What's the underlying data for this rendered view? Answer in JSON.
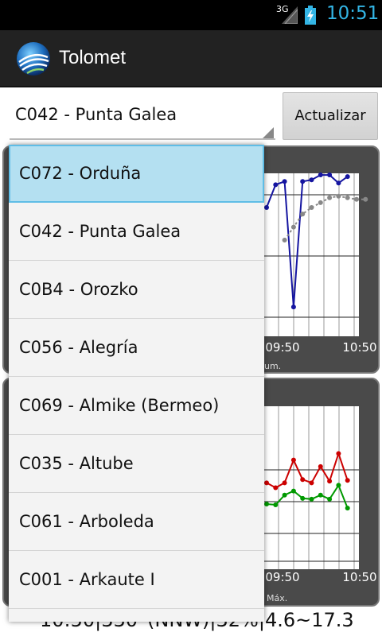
{
  "status_bar": {
    "network": "3G",
    "time": "10:51",
    "time_color": "#33b5e5",
    "icons": [
      "signal-icon",
      "battery-charging-icon"
    ]
  },
  "action_bar": {
    "title": "Tolomet",
    "logo_icon": "tolomet-logo-icon"
  },
  "toolbar": {
    "selected_station": "C042 - Punta Galea",
    "refresh_label": "Actualizar"
  },
  "dropdown": {
    "items": [
      "C072 - Orduña",
      "C042 - Punta Galea",
      "C0B4 - Orozko",
      "C056 - Alegría",
      "C069 - Almike (Bermeo)",
      "C035 - Altube",
      "C061 - Arboleda",
      "C001 - Arkaute I"
    ],
    "highlight_color": "#b4e0f1"
  },
  "chart_data": [
    {
      "type": "line",
      "x_ticks": [
        "09:50",
        "10:50"
      ],
      "visible_label_fragments": [
        "um."
      ],
      "series": [
        {
          "color": "#1515a0",
          "values": [
            79,
            93,
            95,
            18,
            95,
            96,
            99,
            99,
            94,
            98
          ]
        },
        {
          "color": "#888888",
          "values": [
            null,
            null,
            59,
            67,
            75,
            79,
            82,
            85,
            86,
            85,
            84,
            84
          ]
        }
      ]
    },
    {
      "type": "line",
      "x_ticks": [
        "09:50",
        "10:50"
      ],
      "visible_label_fragments": [
        "Máx."
      ],
      "series": [
        {
          "color": "#cc0000",
          "values": [
            10.6,
            10.0,
            10.6,
            13.4,
            11.0,
            10.6,
            12.6,
            10.8,
            14.2,
            10.9
          ]
        },
        {
          "color": "#009900",
          "values": [
            8.0,
            7.9,
            9.1,
            9.6,
            8.7,
            8.6,
            9.1,
            8.6,
            10.3,
            7.5
          ]
        }
      ]
    }
  ],
  "bottom_text": "10:50|330°(NNW)|32%|4.6~17.3"
}
